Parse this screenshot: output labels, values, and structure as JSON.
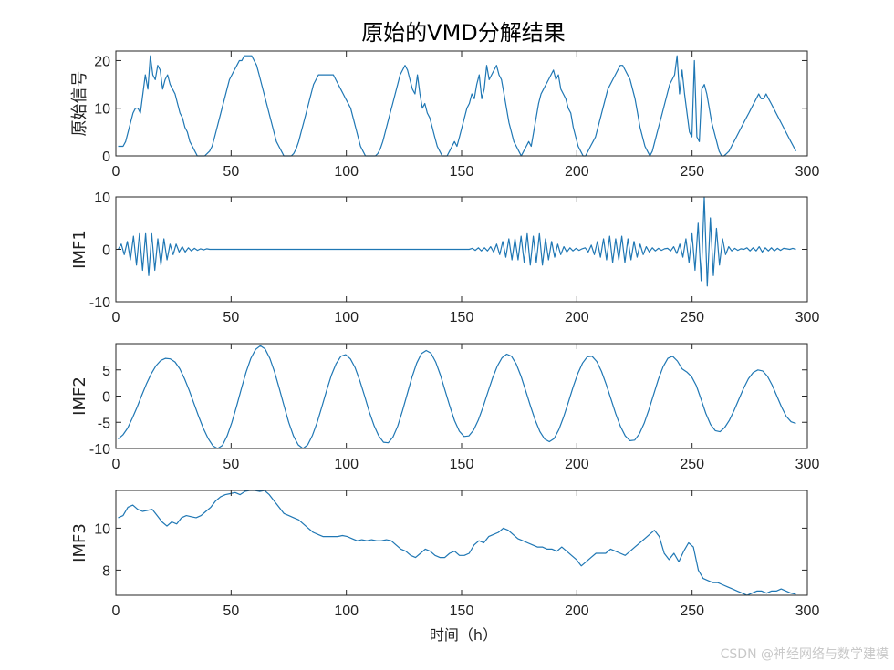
{
  "figure": {
    "title": "原始的VMD分解结果",
    "xlabel": "时间（h）"
  },
  "watermark": "CSDN @神经网络与数学建模",
  "colors": {
    "line": "#1f77b4",
    "axis": "#262626"
  },
  "chart_data": [
    {
      "type": "line",
      "ylabel": "原始信号",
      "xlim": [
        0,
        300
      ],
      "ylim": [
        0,
        22
      ],
      "xticks": [
        0,
        50,
        100,
        150,
        200,
        250,
        300
      ],
      "yticks": [
        0,
        10,
        20
      ],
      "series": [
        {
          "values": [
            2,
            2,
            2,
            3,
            5,
            7,
            9,
            10,
            10,
            9,
            13,
            17,
            14,
            21,
            17,
            16,
            19,
            18,
            14,
            16,
            17,
            15,
            14,
            13,
            11,
            9,
            8,
            6,
            5,
            3,
            2,
            1,
            0,
            0,
            0,
            0,
            0.5,
            1,
            2,
            4,
            6,
            8,
            10,
            12,
            14,
            16,
            17,
            18,
            19,
            20,
            20,
            21,
            21,
            21,
            21,
            20,
            19,
            17,
            15,
            13,
            11,
            9,
            7,
            5,
            3,
            2,
            1,
            0,
            0,
            0,
            0,
            0.5,
            1.5,
            3,
            5,
            7,
            9,
            11,
            13,
            15,
            16,
            17,
            17,
            17,
            17,
            17,
            17,
            17,
            16,
            15,
            14,
            13,
            12,
            11,
            10,
            8,
            6,
            4,
            2,
            1,
            0,
            0,
            0,
            0,
            0,
            0.5,
            1.5,
            3,
            5,
            7,
            9,
            11,
            13,
            15,
            17,
            18,
            19,
            18,
            16,
            14,
            13,
            17,
            13,
            10,
            11,
            9,
            8,
            6,
            4,
            2,
            1,
            0,
            0,
            0,
            1,
            2,
            3,
            2,
            4,
            6,
            8,
            10,
            11,
            13,
            12,
            15,
            17,
            12,
            14,
            19,
            16,
            17,
            18,
            19,
            17,
            16,
            13,
            10,
            7,
            5,
            3,
            2,
            1,
            0,
            1,
            2,
            3,
            2,
            5,
            8,
            11,
            13,
            14,
            15,
            16,
            17,
            18,
            16,
            17,
            14,
            13,
            12,
            10,
            9,
            6,
            4,
            2,
            1,
            0,
            0,
            1,
            2,
            3,
            4,
            6,
            8,
            10,
            12,
            14,
            15,
            16,
            17,
            18,
            19,
            19,
            18,
            17,
            16,
            14,
            12,
            9,
            6,
            4,
            2,
            1,
            0,
            1,
            3,
            5,
            7,
            9,
            11,
            13,
            15,
            16,
            17,
            21,
            13,
            18,
            13,
            9,
            5,
            4,
            20,
            4,
            3,
            14,
            15,
            13,
            10,
            7,
            5,
            3,
            1,
            0,
            0,
            0.5,
            1,
            2,
            3,
            4,
            5,
            6,
            7,
            8,
            9,
            10,
            11,
            12,
            13,
            12,
            12,
            13,
            12,
            11,
            10,
            9,
            8,
            7,
            6,
            5,
            4,
            3,
            2,
            1
          ]
        }
      ]
    },
    {
      "type": "line",
      "ylabel": "IMF1",
      "xlim": [
        0,
        300
      ],
      "ylim": [
        -10,
        10
      ],
      "xticks": [
        0,
        50,
        100,
        150,
        200,
        250,
        300
      ],
      "yticks": [
        -10,
        0,
        10
      ],
      "series": [
        {
          "values": [
            0,
            1,
            -1,
            1.5,
            -2,
            2.5,
            -3,
            3,
            -4,
            3,
            -5,
            3,
            -4,
            2,
            -3,
            2,
            -2,
            1,
            -1,
            1,
            -0.5,
            0.5,
            -0.5,
            0.3,
            -0.3,
            0.2,
            -0.2,
            0.1,
            -0.1,
            0.1,
            0,
            0,
            0,
            0,
            0,
            0,
            0,
            0,
            0,
            0,
            0,
            0,
            0,
            0,
            0,
            0,
            0,
            0,
            0,
            0,
            0,
            0,
            0,
            0,
            0,
            0,
            0,
            0,
            0,
            0,
            0,
            0,
            0,
            0,
            0,
            0,
            0,
            0,
            0,
            0,
            0,
            0,
            0,
            0,
            0,
            0,
            0,
            0,
            0,
            0,
            0,
            0,
            0,
            0,
            0,
            0,
            0,
            0,
            0,
            0,
            0,
            0,
            0,
            0,
            0,
            0,
            0,
            0,
            0,
            0,
            0,
            0,
            0,
            0,
            0,
            0,
            0,
            0,
            0,
            0,
            0,
            0,
            0,
            0,
            0,
            0,
            0.2,
            -0.2,
            0.3,
            -0.3,
            0.3,
            -0.3,
            0.5,
            -0.5,
            1,
            -1,
            1.5,
            -1.5,
            2,
            -2,
            2,
            -2,
            2.5,
            -2.5,
            3,
            -3,
            2.5,
            -2.5,
            3,
            -3,
            2,
            -2,
            1.5,
            -1.5,
            1,
            -1,
            0.5,
            -0.5,
            0.3,
            -0.3,
            0.2,
            -0.2,
            0.1,
            0.3,
            -0.5,
            0.8,
            -1,
            1.5,
            -1.5,
            2,
            -2,
            2.5,
            -2.5,
            2,
            -2,
            2.5,
            -2.5,
            2,
            -2,
            1.5,
            -1.5,
            1,
            -1,
            0.5,
            -0.5,
            0.3,
            -0.3,
            0.2,
            -0.2,
            0.1,
            0.2,
            -0.3,
            0.5,
            -0.8,
            1,
            -1.5,
            2,
            -2.5,
            3,
            -4,
            5,
            -6,
            10,
            -7,
            6,
            -5,
            4,
            -3,
            2,
            -1,
            0.5,
            -0.3,
            0.2,
            -0.2,
            0.1,
            0,
            0.3,
            -0.3,
            0.3,
            -0.3,
            0.5,
            -0.5,
            0.3,
            -0.3,
            0.3,
            -0.3,
            0.2,
            -0.2,
            0.2,
            0.1,
            0,
            0.2,
            0
          ]
        }
      ]
    },
    {
      "type": "line",
      "ylabel": "IMF2",
      "xlim": [
        0,
        300
      ],
      "ylim": [
        -10,
        10
      ],
      "xticks": [
        0,
        50,
        100,
        150,
        200,
        250,
        300
      ],
      "yticks": [
        -10,
        -5,
        0,
        5
      ],
      "series": [
        {
          "values": [
            -8.2,
            -7.4,
            -6.1,
            -4.2,
            -2.1,
            0.2,
            2.4,
            4.3,
            5.8,
            6.8,
            7.2,
            7.1,
            6.5,
            5.2,
            3.3,
            1.1,
            -1.4,
            -3.9,
            -6.2,
            -8.1,
            -9.5,
            -10.0,
            -9.4,
            -7.6,
            -5.0,
            -1.9,
            1.4,
            4.6,
            7.2,
            8.9,
            9.6,
            9.0,
            7.2,
            4.6,
            1.5,
            -1.8,
            -5.0,
            -7.6,
            -9.3,
            -10.0,
            -9.3,
            -7.5,
            -5.0,
            -2.0,
            1.1,
            4.0,
            6.2,
            7.6,
            7.9,
            7.1,
            5.4,
            2.9,
            0.0,
            -3.0,
            -5.6,
            -7.6,
            -8.8,
            -8.9,
            -7.8,
            -5.7,
            -2.8,
            0.4,
            3.6,
            6.3,
            8.1,
            8.7,
            8.2,
            6.5,
            4.0,
            1.0,
            -2.0,
            -4.7,
            -6.7,
            -7.7,
            -7.6,
            -6.5,
            -4.6,
            -2.1,
            0.7,
            3.4,
            5.7,
            7.3,
            8.0,
            7.6,
            6.1,
            3.8,
            1.0,
            -1.9,
            -4.6,
            -6.8,
            -8.2,
            -8.7,
            -8.1,
            -6.4,
            -4.0,
            -1.2,
            1.7,
            4.3,
            6.3,
            7.5,
            7.6,
            6.6,
            4.7,
            2.2,
            -0.6,
            -3.4,
            -5.8,
            -7.6,
            -8.5,
            -8.4,
            -7.2,
            -5.2,
            -2.6,
            0.3,
            3.2,
            5.6,
            7.2,
            7.6,
            6.7,
            5.2,
            4.6,
            3.7,
            2.0,
            -0.6,
            -3.3,
            -5.4,
            -6.6,
            -6.8,
            -6.0,
            -4.6,
            -2.7,
            -0.6,
            1.5,
            3.3,
            4.5,
            5.0,
            4.8,
            3.8,
            2.1,
            0.0,
            -2.1,
            -3.9,
            -4.9,
            -5.2
          ]
        }
      ]
    },
    {
      "type": "line",
      "ylabel": "IMF3",
      "xlim": [
        0,
        300
      ],
      "ylim": [
        6.8,
        11.8
      ],
      "xticks": [
        0,
        50,
        100,
        150,
        200,
        250,
        300
      ],
      "yticks": [
        8,
        10
      ],
      "series": [
        {
          "values": [
            10.5,
            10.6,
            11.0,
            11.1,
            10.9,
            10.8,
            10.85,
            10.9,
            10.6,
            10.3,
            10.1,
            10.3,
            10.2,
            10.5,
            10.6,
            10.55,
            10.5,
            10.6,
            10.8,
            11.0,
            11.3,
            11.5,
            11.6,
            11.65,
            11.7,
            11.6,
            11.75,
            11.8,
            11.8,
            11.75,
            11.8,
            11.6,
            11.3,
            11.0,
            10.7,
            10.6,
            10.5,
            10.4,
            10.2,
            10.0,
            9.8,
            9.7,
            9.6,
            9.6,
            9.6,
            9.6,
            9.65,
            9.6,
            9.5,
            9.4,
            9.45,
            9.4,
            9.45,
            9.4,
            9.4,
            9.45,
            9.4,
            9.2,
            9.0,
            8.9,
            8.7,
            8.6,
            8.8,
            9.0,
            8.9,
            8.7,
            8.6,
            8.6,
            8.8,
            8.9,
            8.7,
            8.7,
            8.8,
            9.2,
            9.4,
            9.3,
            9.6,
            9.7,
            9.8,
            10.0,
            9.9,
            9.7,
            9.5,
            9.4,
            9.3,
            9.2,
            9.1,
            9.1,
            9.0,
            9.0,
            8.9,
            9.1,
            8.9,
            8.7,
            8.5,
            8.2,
            8.4,
            8.6,
            8.8,
            8.8,
            8.8,
            9.0,
            8.9,
            8.8,
            8.7,
            8.9,
            9.1,
            9.3,
            9.5,
            9.7,
            9.9,
            9.6,
            8.8,
            8.5,
            8.8,
            8.4,
            8.9,
            9.3,
            9.1,
            8.0,
            7.6,
            7.5,
            7.4,
            7.4,
            7.3,
            7.2,
            7.1,
            7.0,
            6.9,
            6.8,
            6.9,
            7.0,
            7.0,
            6.9,
            7.0,
            7.0,
            7.1,
            7.0,
            6.9,
            6.85
          ]
        }
      ]
    }
  ]
}
